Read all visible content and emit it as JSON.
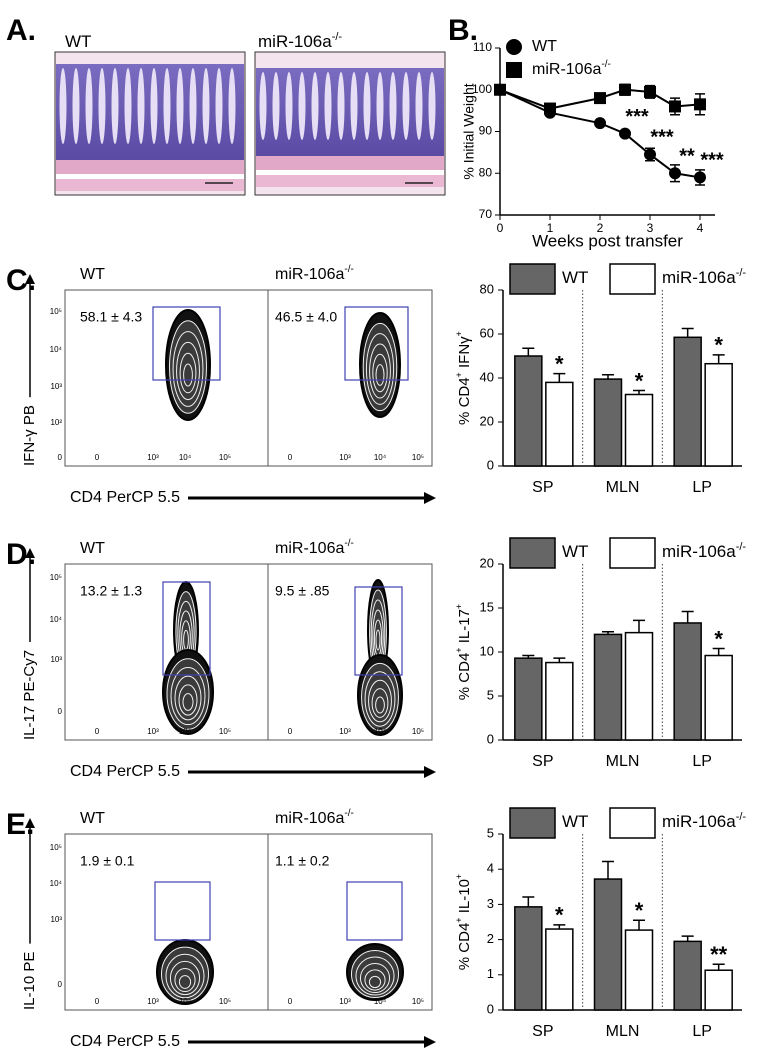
{
  "panels": {
    "A": {
      "label": "A.",
      "images": [
        {
          "title": "WT"
        },
        {
          "title": "miR-106a",
          "title_sup": "-/-"
        }
      ]
    },
    "flow": [
      {
        "label": "C.",
        "ylabel": "IFN-γ PB",
        "xlabel": "CD4 PerCP 5.5",
        "xticks": [
          "0",
          "10³",
          "10⁴",
          "10⁵"
        ],
        "yticks": [
          "10⁵",
          "10⁴",
          "10³",
          "10²",
          "0"
        ],
        "plots": [
          {
            "title": "WT",
            "stat": "58.1 ± 4.3"
          },
          {
            "title": "miR-106a",
            "title_sup": "-/-",
            "stat": "46.5 ±  4.0"
          }
        ]
      },
      {
        "label": "D.",
        "ylabel": "IL-17 PE-Cy7",
        "xlabel": "CD4 PerCP 5.5",
        "xticks": [
          "0",
          "10³",
          "10⁴",
          "10⁵"
        ],
        "yticks": [
          "10⁵",
          "10⁴",
          "10³",
          "0"
        ],
        "plots": [
          {
            "title": "WT",
            "stat": "13.2 ± 1.3"
          },
          {
            "title": "miR-106a",
            "title_sup": "-/-",
            "stat": "9.5 ± .85"
          }
        ]
      },
      {
        "label": "E.",
        "ylabel": "IL-10 PE",
        "xlabel": "CD4 PerCP 5.5",
        "xticks": [
          "0",
          "10³",
          "10⁴",
          "10⁵"
        ],
        "yticks": [
          "10⁵",
          "10⁴",
          "10³",
          "0"
        ],
        "plots": [
          {
            "title": "WT",
            "stat": "1.9 ± 0.1"
          },
          {
            "title": "miR-106a",
            "title_sup": "-/-",
            "stat": "1.1 ±  0.2"
          }
        ]
      }
    ]
  },
  "chart_data": [
    {
      "type": "line",
      "panel_label": "B.",
      "xlabel": "Weeks post transfer",
      "ylabel": "% Initial Weight",
      "xlim": [
        0,
        4.3
      ],
      "xticks": [
        0,
        1,
        2,
        3,
        4
      ],
      "ylim": [
        70,
        110
      ],
      "yticks": [
        70,
        80,
        90,
        100,
        110
      ],
      "series": [
        {
          "name": "WT",
          "marker": "circle",
          "color": "#000000",
          "x": [
            0,
            1,
            2,
            2.5,
            3,
            3.5,
            4
          ],
          "values": [
            100,
            94.5,
            92,
            89.5,
            84.5,
            80,
            79
          ],
          "errors": [
            0,
            0.6,
            0.6,
            0.6,
            1.5,
            2,
            1.8
          ],
          "significance": [
            null,
            null,
            null,
            "***",
            "***",
            "**",
            "***"
          ]
        },
        {
          "name": "miR-106a",
          "name_sup": "-/-",
          "marker": "square",
          "color": "#000000",
          "x": [
            0,
            1,
            2,
            2.5,
            3,
            3.5,
            4
          ],
          "values": [
            100,
            95.5,
            98,
            100,
            99.5,
            96,
            96.5
          ],
          "errors": [
            0,
            0.6,
            0.6,
            1.3,
            1.5,
            2,
            2.5
          ]
        }
      ]
    },
    {
      "type": "bar",
      "ylabel": [
        "% CD4",
        "+",
        " IFNγ",
        "+"
      ],
      "categories": [
        "SP",
        "MLN",
        "LP"
      ],
      "ylim": [
        0,
        80
      ],
      "yticks": [
        0,
        20,
        40,
        60,
        80
      ],
      "series": [
        {
          "name": "WT",
          "color": "#666666",
          "values": [
            50,
            39.5,
            58.5
          ],
          "errors": [
            3.5,
            2,
            4
          ]
        },
        {
          "name": "miR-106a",
          "name_sup": "-/-",
          "color": "#ffffff",
          "values": [
            38,
            32.5,
            46.5
          ],
          "errors": [
            4,
            1.8,
            4
          ],
          "significance": [
            "*",
            "*",
            "*"
          ]
        }
      ]
    },
    {
      "type": "bar",
      "ylabel": [
        "% CD4",
        "+",
        " IL-17",
        "+"
      ],
      "categories": [
        "SP",
        "MLN",
        "LP"
      ],
      "ylim": [
        0,
        20
      ],
      "yticks": [
        0,
        5,
        10,
        15,
        20
      ],
      "series": [
        {
          "name": "WT",
          "color": "#666666",
          "values": [
            9.3,
            12,
            13.3
          ],
          "errors": [
            0.3,
            0.3,
            1.3
          ]
        },
        {
          "name": "miR-106a",
          "name_sup": "-/-",
          "color": "#ffffff",
          "values": [
            8.8,
            12.2,
            9.6
          ],
          "errors": [
            0.5,
            1.4,
            0.8
          ],
          "significance": [
            null,
            null,
            "*"
          ]
        }
      ]
    },
    {
      "type": "bar",
      "ylabel": [
        "% CD4",
        "+",
        " IL-10",
        "+"
      ],
      "categories": [
        "SP",
        "MLN",
        "LP"
      ],
      "ylim": [
        0,
        5
      ],
      "yticks": [
        0,
        1,
        2,
        3,
        4,
        5
      ],
      "series": [
        {
          "name": "WT",
          "color": "#666666",
          "values": [
            2.93,
            3.72,
            1.95
          ],
          "errors": [
            0.28,
            0.5,
            0.15
          ]
        },
        {
          "name": "miR-106a",
          "name_sup": "-/-",
          "color": "#ffffff",
          "values": [
            2.3,
            2.27,
            1.13
          ],
          "errors": [
            0.12,
            0.28,
            0.17
          ],
          "significance": [
            "*",
            "*",
            "**"
          ]
        }
      ]
    }
  ]
}
